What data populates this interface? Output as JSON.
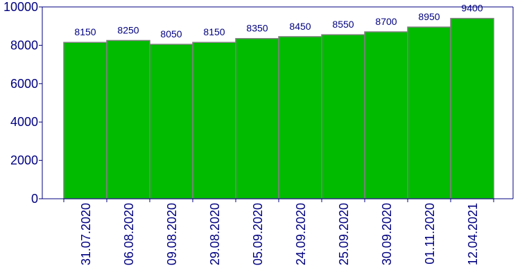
{
  "chart_data": {
    "type": "bar",
    "title": "",
    "xlabel": "",
    "ylabel": "",
    "categories": [
      "31.07.2020",
      "06.08.2020",
      "09.08.2020",
      "29.08.2020",
      "05.09.2020",
      "24.09.2020",
      "25.09.2020",
      "30.09.2020",
      "01.11.2020",
      "12.04.2021"
    ],
    "values": [
      8150,
      8250,
      8050,
      8150,
      8350,
      8450,
      8550,
      8700,
      8950,
      9400
    ],
    "data_labels": [
      "8150",
      "8250",
      "8050",
      "8150",
      "8350",
      "8450",
      "8550",
      "8700",
      "8950",
      "9400"
    ],
    "ylim": [
      0,
      10000
    ],
    "yticks": [
      0,
      2000,
      4000,
      6000,
      8000,
      10000
    ],
    "ytick_labels": [
      "0",
      "2000",
      "4000",
      "6000",
      "8000",
      "10000"
    ],
    "grid": false,
    "legend": "none",
    "colors": {
      "bar_fill": "#00BB00",
      "bar_stroke": "#808080",
      "axis": "#000080",
      "text": "#000080",
      "background": "#ffffff"
    }
  }
}
